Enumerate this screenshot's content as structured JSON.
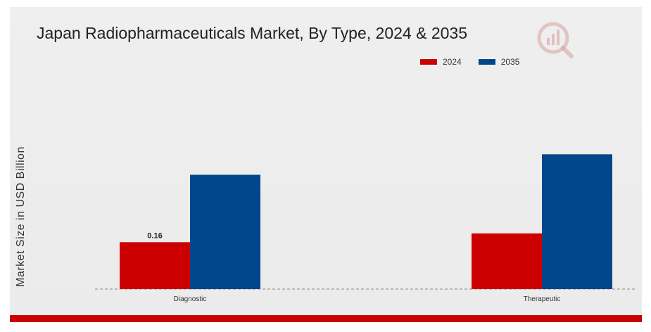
{
  "title": "Japan Radiopharmaceuticals Market, By Type, 2024 & 2035",
  "colors": {
    "series_2024": "#cc0000",
    "series_2035": "#00468b",
    "background_panel": "#ececec",
    "bottom_strip": "#cc0000"
  },
  "logo_icon": "mrfr-logo-icon",
  "chart_data": {
    "type": "bar",
    "title": "Japan Radiopharmaceuticals Market, By Type, 2024 & 2035",
    "ylabel": "Market Size in USD Billion",
    "xlabel": "",
    "categories": [
      "Diagnostic",
      "Therapeutic"
    ],
    "series": [
      {
        "name": "2024",
        "color": "#cc0000",
        "values": [
          0.16,
          0.19
        ]
      },
      {
        "name": "2035",
        "color": "#00468b",
        "values": [
          0.39,
          0.46
        ]
      }
    ],
    "data_labels": [
      {
        "series": 0,
        "category": 0,
        "text": "0.16"
      }
    ],
    "ylim": [
      0,
      0.6
    ],
    "grid": false,
    "baseline_style": "dashed",
    "legend_position": "top-right"
  }
}
